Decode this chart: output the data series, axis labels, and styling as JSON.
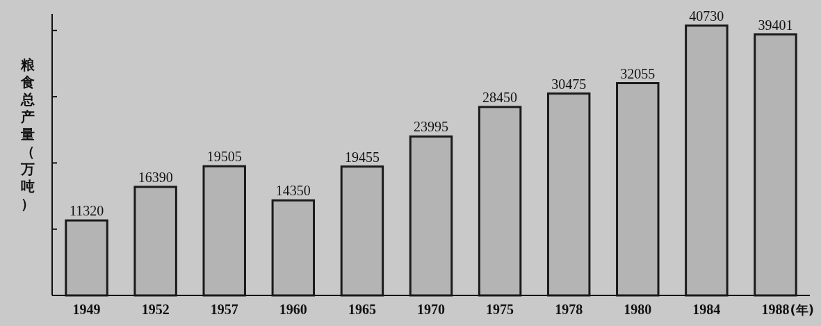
{
  "chart_data": {
    "type": "bar",
    "ylabel": "粮食总产量（万吨）",
    "xlabel": "(年)",
    "categories": [
      "1949",
      "1952",
      "1957",
      "1960",
      "1965",
      "1970",
      "1975",
      "1978",
      "1980",
      "1984",
      "1988"
    ],
    "values": [
      11320,
      16390,
      19505,
      14350,
      19455,
      23995,
      28450,
      30475,
      32055,
      40730,
      39401
    ],
    "color": "#b4b4b4",
    "ylim": [
      0,
      42500
    ],
    "yticks": [
      {
        "value": 10000,
        "label": null
      },
      {
        "value": 20000,
        "label": null
      },
      {
        "value": 30000,
        "label": null
      },
      {
        "value": 40000,
        "label": null
      }
    ],
    "tick_labels": "x",
    "data_labels": true
  }
}
